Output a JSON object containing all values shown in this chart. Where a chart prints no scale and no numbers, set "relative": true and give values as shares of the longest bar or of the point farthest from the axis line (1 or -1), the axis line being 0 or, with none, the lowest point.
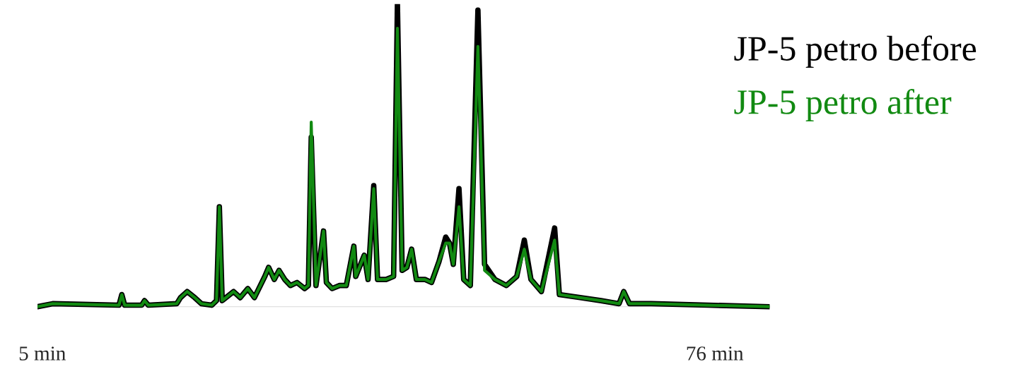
{
  "chart_data": {
    "type": "line",
    "relative": true,
    "x": [
      4.5,
      6.1,
      13.1,
      13.4,
      13.7,
      15.5,
      15.8,
      16.2,
      19.2,
      19.6,
      20.3,
      21.1,
      21.8,
      22.9,
      23.4,
      23.7,
      24.0,
      24.4,
      25.2,
      25.9,
      26.7,
      27.4,
      28.5,
      28.9,
      29.5,
      30.0,
      30.6,
      31.2,
      31.9,
      32.7,
      33.1,
      33.4,
      33.9,
      34.7,
      35.0,
      35.6,
      36.4,
      37.1,
      37.9,
      38.1,
      39.0,
      39.4,
      40.0,
      40.4,
      41.3,
      42.1,
      42.5,
      43.0,
      43.5,
      44.0,
      44.5,
      45.4,
      46.1,
      46.9,
      47.6,
      48.0,
      48.4,
      49.0,
      49.5,
      50.2,
      51.0,
      51.7,
      52.8,
      54.0,
      55.1,
      55.9,
      56.6,
      57.7,
      59.1,
      59.6,
      61.8,
      64.0,
      65.9,
      66.4,
      67.0,
      69.3,
      75.3,
      81.8
    ],
    "xlim": [
      4.5,
      81.8
    ],
    "xticks": [
      {
        "value": 5,
        "label": "5 min"
      },
      {
        "value": 76,
        "label": "76 min"
      }
    ],
    "series": [
      {
        "name": "JP-5 petro before",
        "color": "#000000",
        "values": [
          0,
          0.01,
          0.005,
          0.04,
          0.005,
          0.005,
          0.02,
          0.005,
          0.01,
          0.03,
          0.05,
          0.03,
          0.01,
          0.005,
          0.02,
          0.33,
          0.02,
          0.03,
          0.05,
          0.03,
          0.06,
          0.03,
          0.1,
          0.13,
          0.09,
          0.12,
          0.09,
          0.07,
          0.08,
          0.06,
          0.07,
          0.56,
          0.07,
          0.25,
          0.08,
          0.06,
          0.07,
          0.07,
          0.2,
          0.1,
          0.17,
          0.09,
          0.4,
          0.09,
          0.09,
          0.1,
          1.0,
          0.12,
          0.13,
          0.19,
          0.09,
          0.09,
          0.08,
          0.15,
          0.23,
          0.21,
          0.14,
          0.39,
          0.09,
          0.07,
          0.98,
          0.14,
          0.09,
          0.07,
          0.1,
          0.22,
          0.09,
          0.05,
          0.26,
          0.04,
          0.03,
          0.02,
          0.01,
          0.05,
          0.01,
          0.01,
          0.005,
          0
        ]
      },
      {
        "name": "JP-5 petro after",
        "color": "#128a12",
        "values": [
          0,
          0.01,
          0.005,
          0.04,
          0.005,
          0.005,
          0.02,
          0.005,
          0.01,
          0.03,
          0.05,
          0.03,
          0.01,
          0.005,
          0.02,
          0.33,
          0.02,
          0.03,
          0.05,
          0.03,
          0.06,
          0.03,
          0.1,
          0.13,
          0.09,
          0.12,
          0.09,
          0.07,
          0.08,
          0.06,
          0.07,
          0.61,
          0.07,
          0.25,
          0.08,
          0.06,
          0.07,
          0.07,
          0.2,
          0.1,
          0.17,
          0.09,
          0.39,
          0.09,
          0.09,
          0.1,
          0.92,
          0.12,
          0.13,
          0.19,
          0.09,
          0.09,
          0.08,
          0.15,
          0.21,
          0.21,
          0.14,
          0.33,
          0.09,
          0.07,
          0.86,
          0.12,
          0.09,
          0.07,
          0.1,
          0.19,
          0.09,
          0.05,
          0.22,
          0.04,
          0.03,
          0.02,
          0.01,
          0.05,
          0.01,
          0.01,
          0.005,
          0
        ]
      }
    ],
    "legend": "top right",
    "grid": false,
    "marker": "none",
    "line_style": "solid"
  }
}
